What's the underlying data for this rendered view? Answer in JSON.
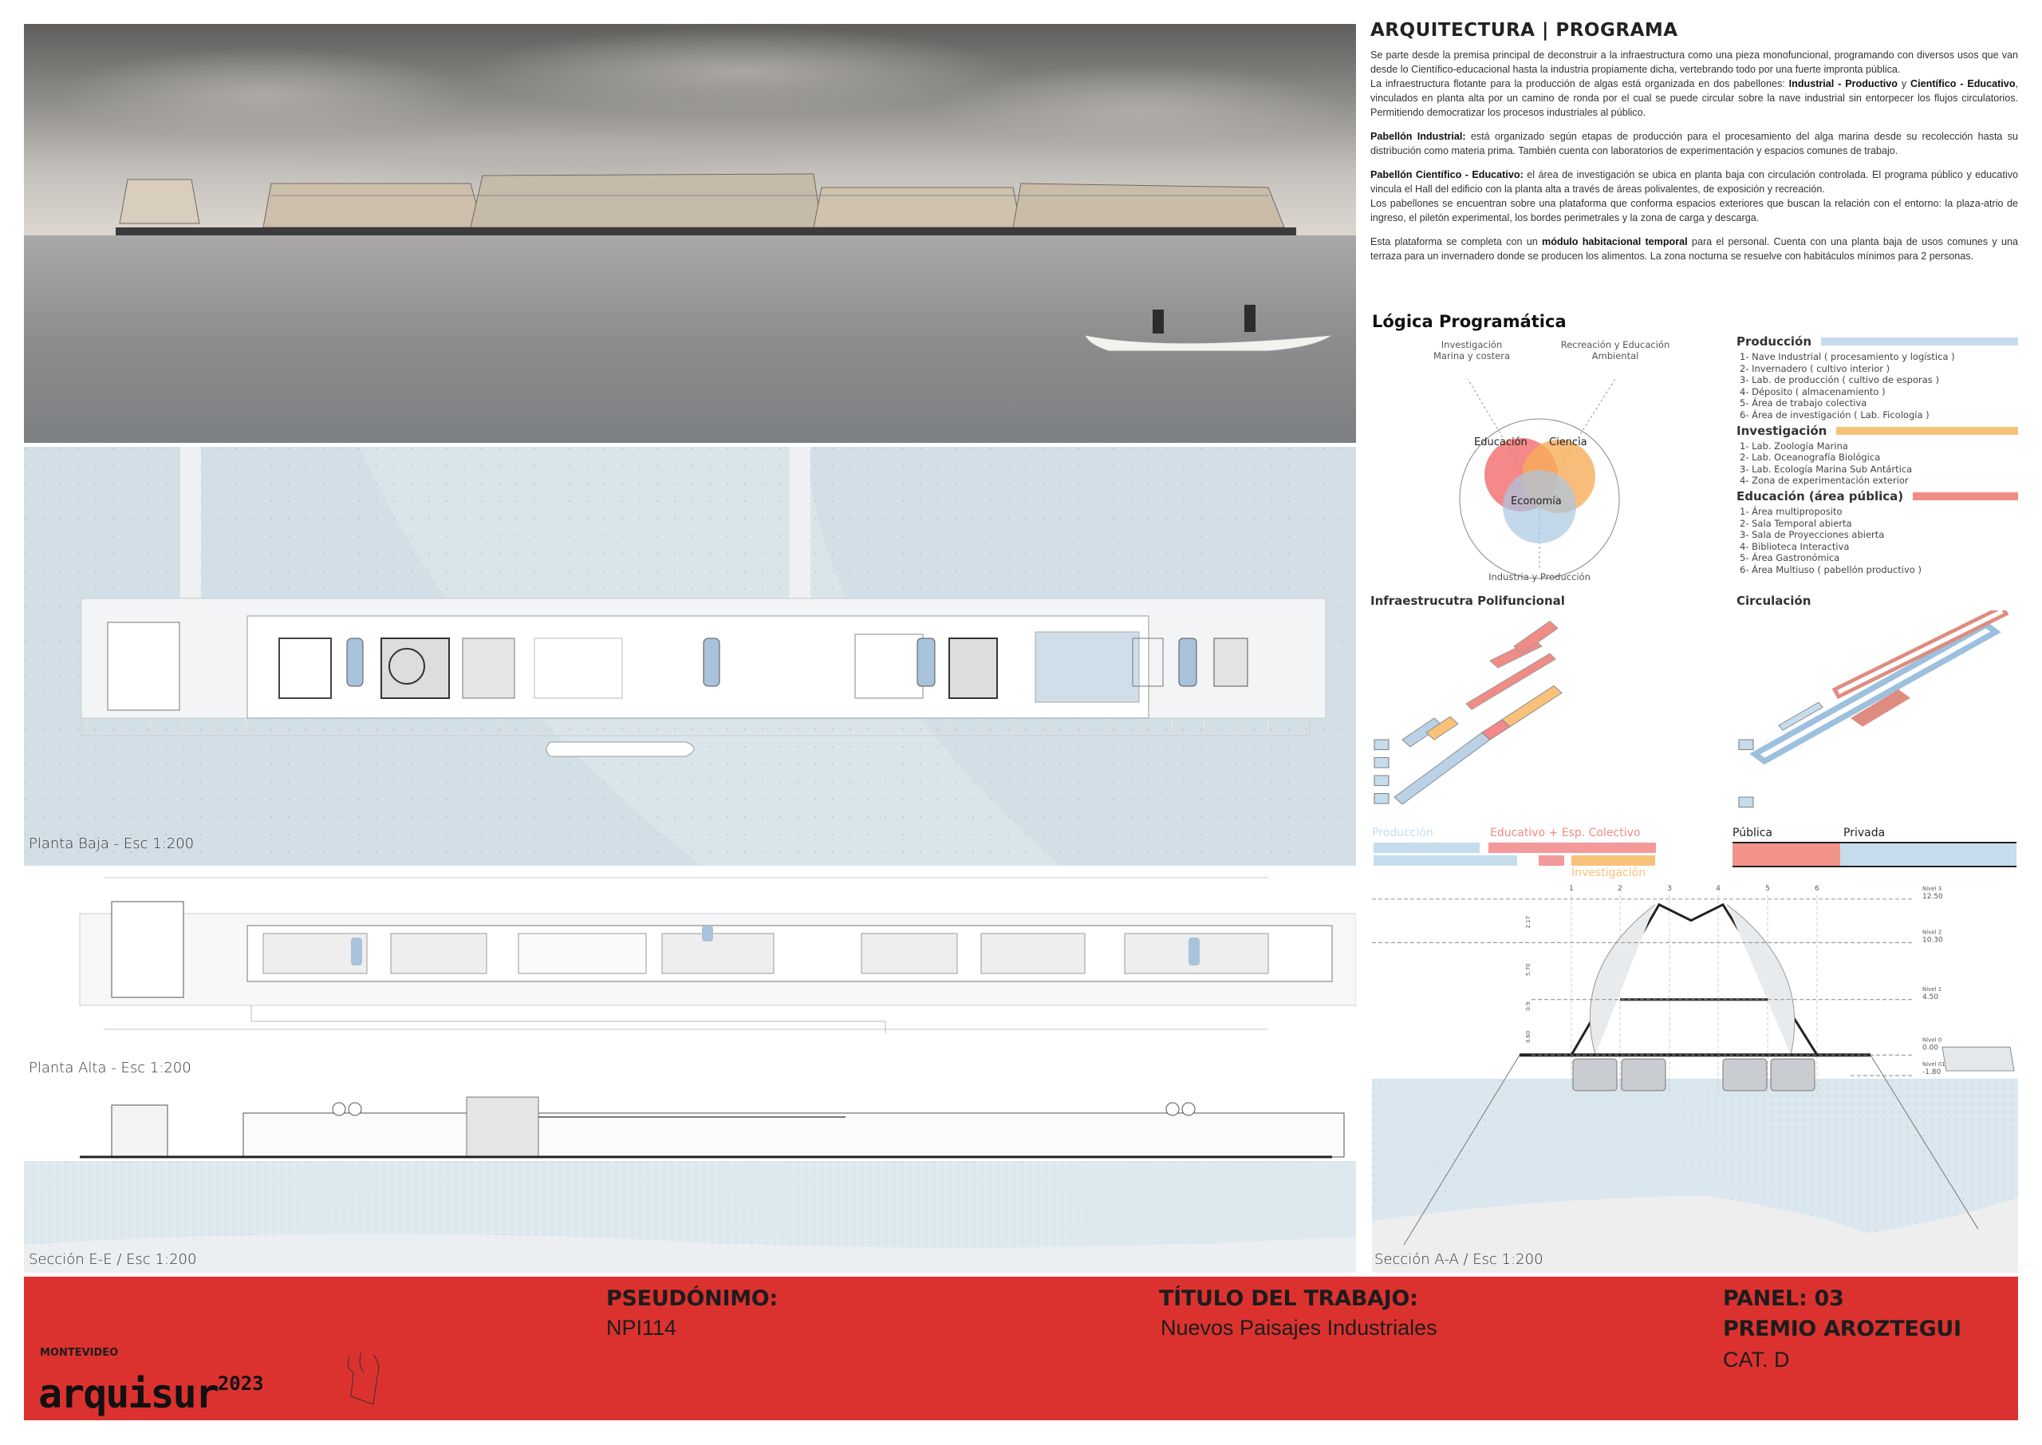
{
  "header": {
    "title": "ARQUITECTURA | PROGRAMA"
  },
  "body_text": {
    "p1_lines": [
      "Se parte desde la premisa principal de deconstruir a la infraestructura como una pieza monofuncional, programando con diversos usos que van desde lo Científico-educacional hasta la industria propiamente dicha, vertebrando todo por una fuerte impronta pública."
    ],
    "p2_pre": "La infraestructura flotante para la producción de algas está organizada en dos pabellones: ",
    "p2_b1": "Industrial - Productivo",
    "p2_mid": " y ",
    "p2_b2": "Científico - Educativo",
    "p2_post": ", vinculados en planta alta por un camino de ronda por el cual se puede circular sobre la nave industrial sin entorpecer los flujos circulatorios. Permitiendo democratizar los procesos industriales al público.",
    "p3_b": "Pabellón Industrial:",
    "p3": " está organizado según etapas de producción para el procesamiento del alga marina desde su recolección hasta su distribución como materia prima. También cuenta con laboratorios de experimentación y espacios comunes de trabajo.",
    "p4_b": "Pabellón Científico - Educativo:",
    "p4": " el área de investigación se ubica en planta baja con circulación controlada. El programa público y educativo vincula el Hall del edificio con la planta alta a través de áreas polivalentes, de exposición y recreación.",
    "p5": "Los pabellones se encuentran sobre una plataforma que conforma espacios exteriores que buscan la relación con el entorno: la plaza-atrio de ingreso, el piletón experimental, los bordes perimetrales y la zona de carga y descarga.",
    "p6_pre": "Esta plataforma se completa con un ",
    "p6_b": "módulo habitacional temporal",
    "p6_post": " para el personal. Cuenta con una planta baja de usos comunes y una terraza para un invernadero donde se producen los alimentos. La zona nocturna se resuelve con habitáculos mínimos para 2 personas."
  },
  "logica": {
    "title": "Lógica Programática",
    "arrow_top_left": [
      "Investigación",
      "Marina y costera"
    ],
    "arrow_top_right": [
      "Recreación y Educación",
      "Ambiental"
    ],
    "arrow_bottom": "Industria y Producción",
    "circles": [
      {
        "label": "Educación",
        "color": "#f26b6b"
      },
      {
        "label": "Ciencia",
        "color": "#f7ad5a"
      },
      {
        "label": "Economía",
        "color": "#a9c8e3"
      }
    ]
  },
  "categories": [
    {
      "title": "Producción",
      "color": "#c5dced",
      "items": [
        "1- Nave Industrial ( procesamiento y logística )",
        "2- Invernadero ( cultivo interior )",
        "3- Lab. de producción ( cultivo de esporas )",
        "4- Déposito ( almacenamiento )",
        "5- Área de trabajo colectiva",
        "6- Área de investigación ( Lab. Ficología )"
      ]
    },
    {
      "title": "Investigación",
      "color": "#f8c27a",
      "items": [
        "1- Lab. Zoología Marina",
        "2- Lab. Oceanografía Biológica",
        "3- Lab. Ecología Marina Sub Antártica",
        "4- Zona de experimentación exterior"
      ]
    },
    {
      "title": "Educación (área pública)",
      "color": "#ef8c86",
      "items": [
        "1- Área multiproposito",
        "2- Sala Temporal abierta",
        "3- Sala de Proyecciones abierta",
        "4- Biblioteca Interactiva",
        "5- Área Gastronómica",
        "6- Área Multiuso ( pabellón productivo )"
      ]
    }
  ],
  "diagrams": {
    "infra_title": "Infraestrucutra Polifuncional",
    "circ_title": "Circulación",
    "infra_legend": {
      "produccion": "Producción",
      "educativo": "Educativo + Esp. Colectivo",
      "investigacion": "Investigación"
    },
    "circ_legend": {
      "publica": "Pública",
      "privada": "Privada"
    }
  },
  "drawings": {
    "planta_baja": "Planta Baja - Esc 1:200",
    "planta_alta": "Planta Alta - Esc 1:200",
    "seccion_ee": "Sección E-E / Esc 1:200",
    "seccion_aa": "Sección A-A / Esc 1:200",
    "axes_aa": [
      "1",
      "2",
      "3",
      "4",
      "5",
      "6"
    ],
    "levels_aa": [
      {
        "name": "Nivel 3",
        "value": "12.50"
      },
      {
        "name": "Nivel 2",
        "value": "10.30"
      },
      {
        "name": "Nivel 1",
        "value": "4.50"
      },
      {
        "name": "Nivel 0",
        "value": "0.00"
      },
      {
        "name": "Nivel 01",
        "value": "-1.80"
      }
    ],
    "dims_aa": [
      "2.17",
      "5.70",
      "0.9",
      "3.60"
    ]
  },
  "footer": {
    "color": "#dc322f",
    "logo_city": "MONTEVIDEO",
    "logo_name": "arquisur",
    "logo_year": "2023",
    "pseudonimo_label": "PSEUDÓNIMO:",
    "pseudonimo_value": "NPI114",
    "titulo_label": "TÍTULO DEL TRABAJO:",
    "titulo_value": "Nuevos Paisajes Industriales",
    "panel": "PANEL: 03",
    "premio": "PREMIO AROZTEGUI",
    "categoria": "CAT. D"
  }
}
